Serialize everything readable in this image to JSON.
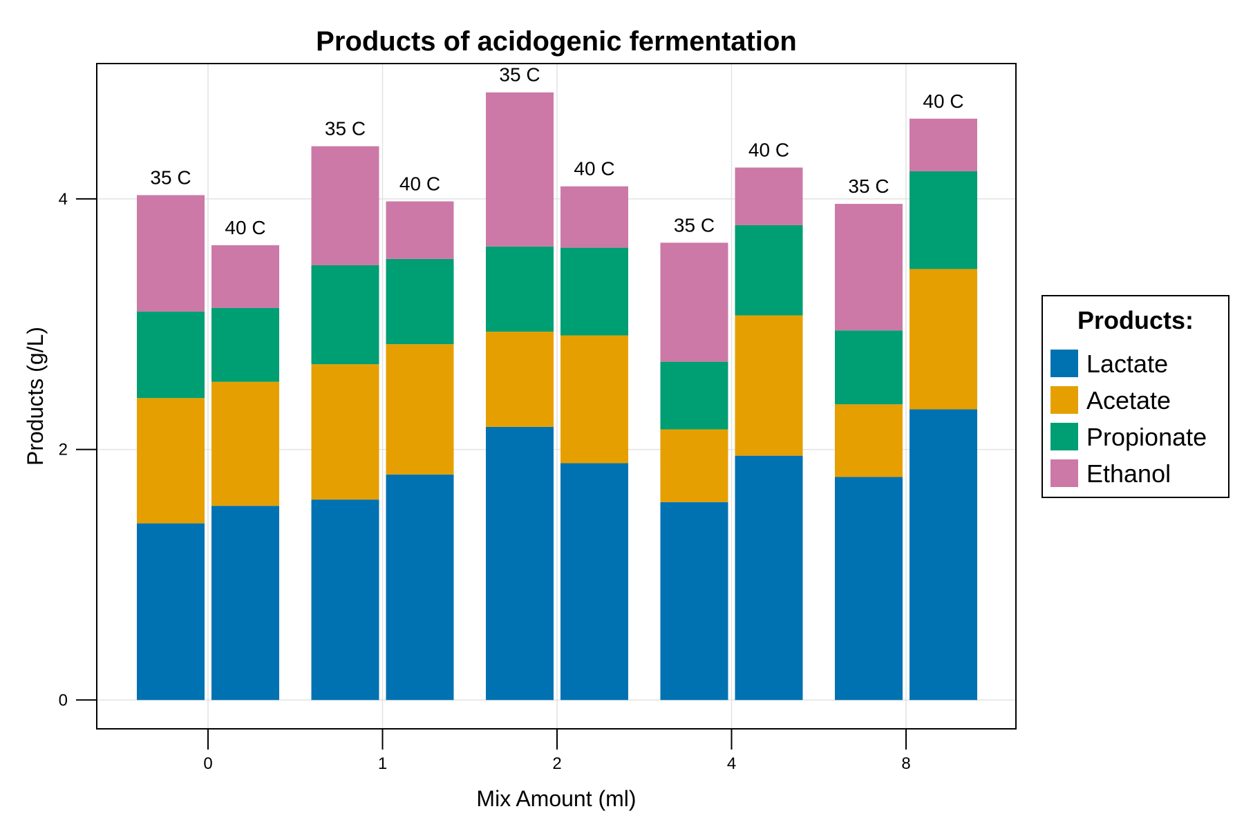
{
  "chart_data": {
    "type": "bar",
    "stacked": true,
    "grouped": true,
    "title": "Products of acidogenic fermentation",
    "xlabel": "Mix Amount (ml)",
    "ylabel": "Products (g/L)",
    "ylim": [
      -0.23,
      5.08
    ],
    "yticks": [
      0,
      2,
      4
    ],
    "grid": true,
    "categories": [
      "0",
      "1",
      "2",
      "4",
      "8"
    ],
    "groups": [
      "35 C",
      "40 C"
    ],
    "legend": {
      "title": "Products:",
      "placement": "right"
    },
    "series": [
      {
        "name": "Lactate",
        "color": "#0072b2",
        "values": [
          [
            1.41,
            1.55
          ],
          [
            1.6,
            1.8
          ],
          [
            2.18,
            1.89
          ],
          [
            1.58,
            1.95
          ],
          [
            1.78,
            2.32
          ]
        ]
      },
      {
        "name": "Acetate",
        "color": "#e69f00",
        "values": [
          [
            1.0,
            0.99
          ],
          [
            1.08,
            1.04
          ],
          [
            0.76,
            1.02
          ],
          [
            0.58,
            1.12
          ],
          [
            0.58,
            1.12
          ]
        ]
      },
      {
        "name": "Propionate",
        "color": "#009e73",
        "values": [
          [
            0.69,
            0.59
          ],
          [
            0.79,
            0.68
          ],
          [
            0.68,
            0.7
          ],
          [
            0.54,
            0.72
          ],
          [
            0.59,
            0.78
          ]
        ]
      },
      {
        "name": "Ethanol",
        "color": "#cc79a7",
        "values": [
          [
            0.93,
            0.5
          ],
          [
            0.95,
            0.46
          ],
          [
            1.23,
            0.49
          ],
          [
            0.95,
            0.46
          ],
          [
            1.01,
            0.42
          ]
        ]
      }
    ]
  }
}
